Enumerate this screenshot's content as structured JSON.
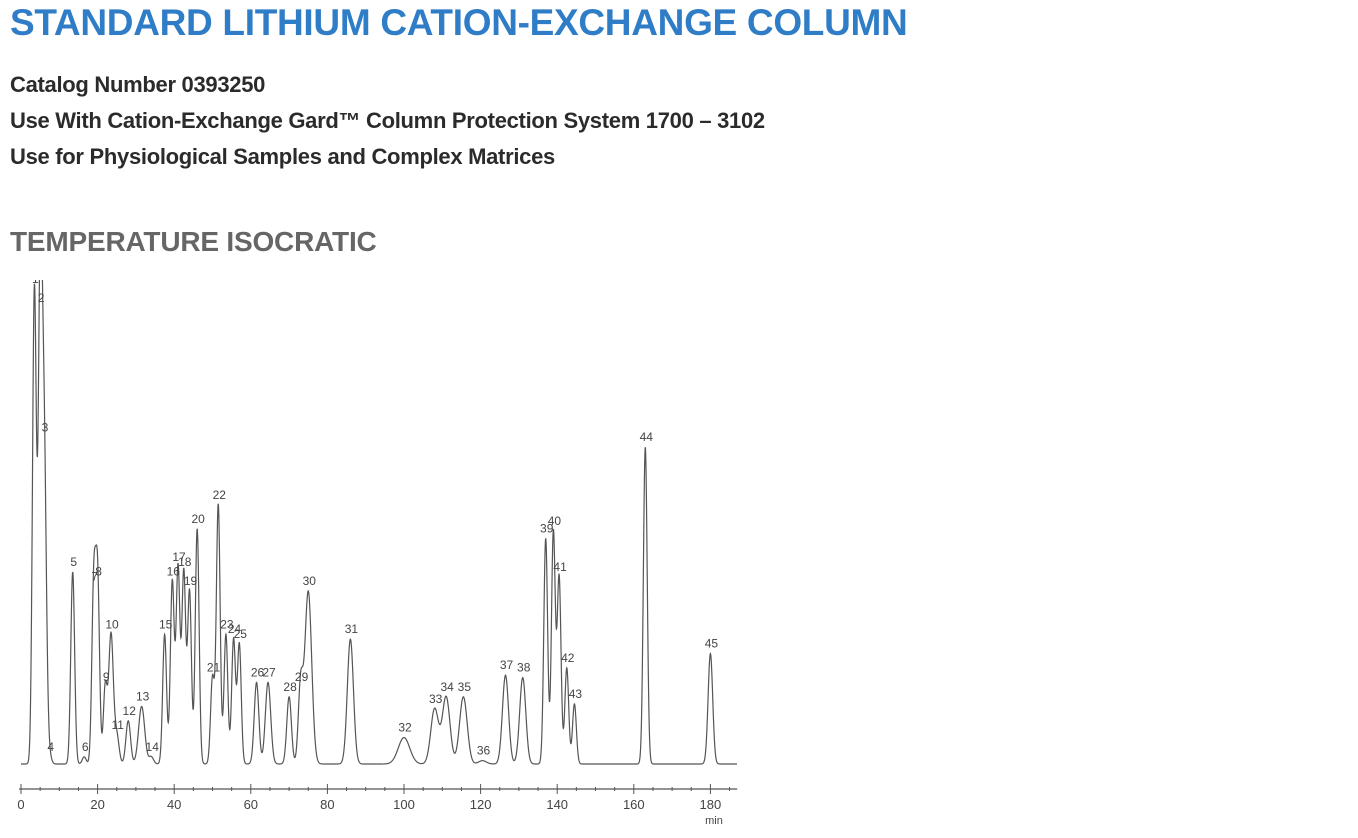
{
  "header": {
    "title": "STANDARD LITHIUM CATION-EXCHANGE COLUMN",
    "catalog": "Catalog Number 0393250",
    "use_with": "Use With Cation-Exchange Gard™ Column Protection System 1700 – 3102",
    "use_for": "Use for Physiological Samples and Complex Matrices"
  },
  "section_title": "TEMPERATURE ISOCRATIC",
  "colors": {
    "title": "#2f7dc6",
    "trace": "#555555"
  },
  "chart_data": {
    "type": "line",
    "title": "",
    "xlabel": "min",
    "ylabel": "",
    "xlim": [
      0,
      187
    ],
    "ylim": [
      0,
      100
    ],
    "xticks": [
      0,
      20,
      40,
      60,
      80,
      100,
      120,
      140,
      160,
      180
    ],
    "grid": false,
    "baseline": 2.5,
    "peaks": [
      {
        "label": "1",
        "x": 3.5,
        "h": 99,
        "w": 0.5
      },
      {
        "label": "2",
        "x": 5.0,
        "h": 95,
        "w": 0.5
      },
      {
        "label": "3",
        "x": 6.0,
        "h": 68,
        "w": 0.6
      },
      {
        "label": "4",
        "x": 7.5,
        "h": 1.5,
        "w": 0.5
      },
      {
        "label": "5",
        "x": 13.5,
        "h": 40,
        "w": 0.5
      },
      {
        "label": "6",
        "x": 16.5,
        "h": 1.5,
        "w": 0.5
      },
      {
        "label": "7",
        "x": 19.0,
        "h": 37,
        "w": 0.5
      },
      {
        "label": "8",
        "x": 20.0,
        "h": 38,
        "w": 0.5
      },
      {
        "label": "9",
        "x": 22.0,
        "h": 16,
        "w": 0.5
      },
      {
        "label": "10",
        "x": 23.5,
        "h": 27,
        "w": 0.6
      },
      {
        "label": "11",
        "x": 25.0,
        "h": 6,
        "w": 0.6
      },
      {
        "label": "12",
        "x": 28.0,
        "h": 9,
        "w": 0.6
      },
      {
        "label": "13",
        "x": 31.5,
        "h": 12,
        "w": 0.8
      },
      {
        "label": "14",
        "x": 34.0,
        "h": 1.5,
        "w": 0.6
      },
      {
        "label": "15",
        "x": 37.5,
        "h": 27,
        "w": 0.5
      },
      {
        "label": "16",
        "x": 39.5,
        "h": 38,
        "w": 0.5
      },
      {
        "label": "17",
        "x": 41.0,
        "h": 41,
        "w": 0.5
      },
      {
        "label": "18",
        "x": 42.5,
        "h": 40,
        "w": 0.5
      },
      {
        "label": "19",
        "x": 44.0,
        "h": 36,
        "w": 0.5
      },
      {
        "label": "20",
        "x": 46.0,
        "h": 49,
        "w": 0.5
      },
      {
        "label": "21",
        "x": 50.0,
        "h": 18,
        "w": 0.5
      },
      {
        "label": "22",
        "x": 51.5,
        "h": 54,
        "w": 0.5
      },
      {
        "label": "23",
        "x": 53.5,
        "h": 27,
        "w": 0.5
      },
      {
        "label": "24",
        "x": 55.5,
        "h": 26,
        "w": 0.5
      },
      {
        "label": "25",
        "x": 57.0,
        "h": 25,
        "w": 0.5
      },
      {
        "label": "26",
        "x": 61.5,
        "h": 17,
        "w": 0.6
      },
      {
        "label": "27",
        "x": 64.5,
        "h": 17,
        "w": 0.7
      },
      {
        "label": "28",
        "x": 70.0,
        "h": 14,
        "w": 0.6
      },
      {
        "label": "29",
        "x": 73.0,
        "h": 16,
        "w": 0.6
      },
      {
        "label": "30",
        "x": 75.0,
        "h": 36,
        "w": 0.9
      },
      {
        "label": "31",
        "x": 86.0,
        "h": 26,
        "w": 0.8
      },
      {
        "label": "32",
        "x": 100.0,
        "h": 5.5,
        "w": 1.5
      },
      {
        "label": "33",
        "x": 108.0,
        "h": 11.5,
        "w": 1.0
      },
      {
        "label": "34",
        "x": 111.0,
        "h": 14,
        "w": 1.0
      },
      {
        "label": "35",
        "x": 115.5,
        "h": 14,
        "w": 1.0
      },
      {
        "label": "36",
        "x": 120.5,
        "h": 0.7,
        "w": 1.0
      },
      {
        "label": "37",
        "x": 126.5,
        "h": 18.5,
        "w": 0.8
      },
      {
        "label": "38",
        "x": 131.0,
        "h": 18,
        "w": 0.8
      },
      {
        "label": "39",
        "x": 137.0,
        "h": 47,
        "w": 0.5
      },
      {
        "label": "40",
        "x": 139.0,
        "h": 48.5,
        "w": 0.5
      },
      {
        "label": "41",
        "x": 140.5,
        "h": 39,
        "w": 0.5
      },
      {
        "label": "42",
        "x": 142.5,
        "h": 20,
        "w": 0.5
      },
      {
        "label": "43",
        "x": 144.5,
        "h": 12.5,
        "w": 0.5
      },
      {
        "label": "44",
        "x": 163.0,
        "h": 66,
        "w": 0.5
      },
      {
        "label": "45",
        "x": 180.0,
        "h": 23,
        "w": 0.6
      }
    ]
  }
}
